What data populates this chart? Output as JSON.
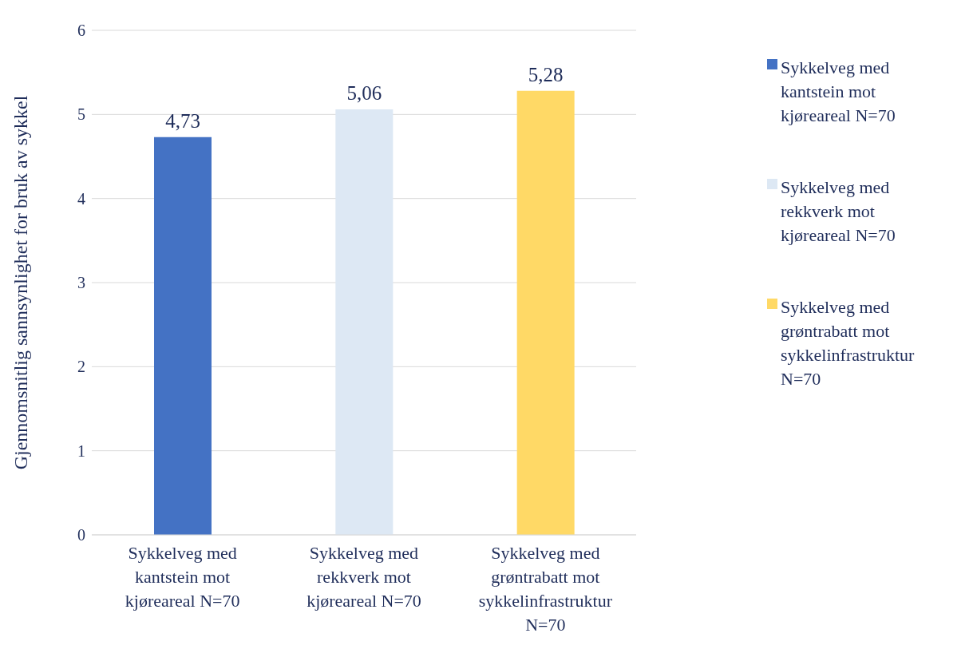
{
  "chart_data": {
    "type": "bar",
    "ylabel": "Gjennomsnitlig  sannsynlighet for bruk av sykkel",
    "categories": [
      "Sykkelveg med kantstein mot kjøreareal N=70",
      "Sykkelveg med rekkverk mot kjøreareal N=70",
      "Sykkelveg med grøntrabatt mot sykkelinfrastruktur N=70"
    ],
    "series": [
      {
        "name": "Sykkelveg med kantstein mot kjøreareal N=70",
        "color": "#4472c4",
        "values": [
          4.73,
          null,
          null
        ],
        "value_labels": [
          "4,73",
          null,
          null
        ]
      },
      {
        "name": "Sykkelveg med rekkverk mot kjøreareal N=70",
        "color": "#dde8f4",
        "values": [
          null,
          5.06,
          null
        ],
        "value_labels": [
          null,
          "5,06",
          null
        ]
      },
      {
        "name": "Sykkelveg med grøntrabatt mot sykkelinfrastruktur N=70",
        "color": "#ffd966",
        "values": [
          null,
          null,
          5.28
        ],
        "value_labels": [
          null,
          null,
          "5,28"
        ]
      }
    ],
    "ylim": [
      0,
      6
    ],
    "yticks": [
      0,
      1,
      2,
      3,
      4,
      5,
      6
    ],
    "grid": "y",
    "legend": "right"
  }
}
